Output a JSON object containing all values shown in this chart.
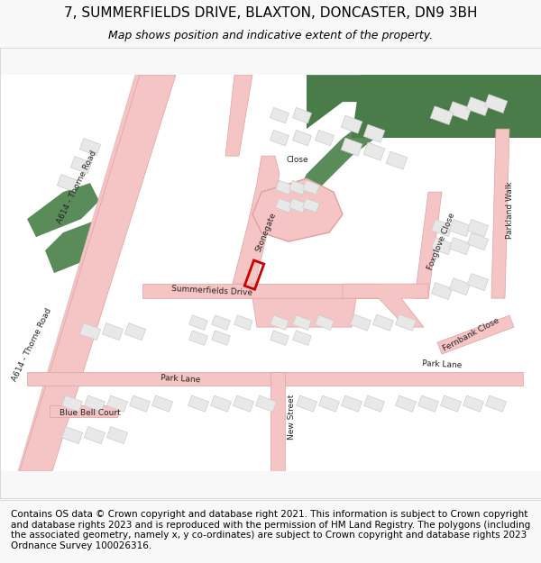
{
  "title": "7, SUMMERFIELDS DRIVE, BLAXTON, DONCASTER, DN9 3BH",
  "subtitle": "Map shows position and indicative extent of the property.",
  "footer": "Contains OS data © Crown copyright and database right 2021. This information is subject to Crown copyright and database rights 2023 and is reproduced with the permission of HM Land Registry. The polygons (including the associated geometry, namely x, y co-ordinates) are subject to Crown copyright and database rights 2023 Ordnance Survey 100026316.",
  "bg_color": "#f8f8f8",
  "map_bg": "#ffffff",
  "road_color": "#f2c4c4",
  "road_outline": "#e0a0a0",
  "building_fill": "#e8e8e8",
  "building_edge": "#cccccc",
  "green_fill": "#5a8c5a",
  "highlight_fill": "none",
  "highlight_edge": "#cc0000",
  "highlight_lw": 2.5,
  "title_fontsize": 11,
  "subtitle_fontsize": 9,
  "footer_fontsize": 7.5
}
